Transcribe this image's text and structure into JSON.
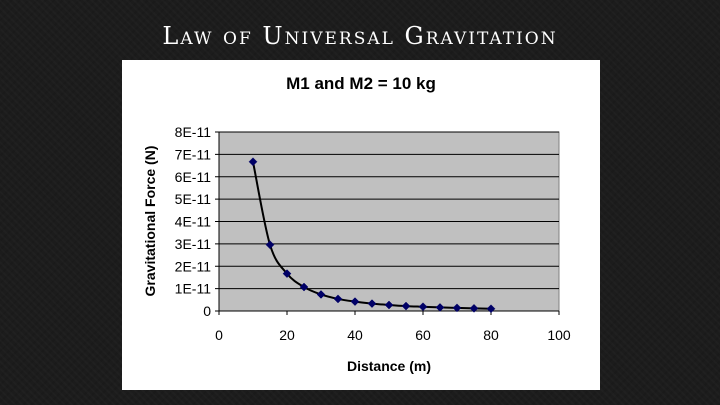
{
  "slide": {
    "title": "Law of Universal Gravitation"
  },
  "chart_data": {
    "type": "scatter",
    "title": "M1 and M2 = 10 kg",
    "xlabel": "Distance (m)",
    "ylabel": "Gravitational Force (N)",
    "xlim": [
      0,
      100
    ],
    "ylim": [
      0,
      8e-11
    ],
    "xticks": [
      0,
      20,
      40,
      60,
      80,
      100
    ],
    "xtick_labels": [
      "0",
      "20",
      "40",
      "60",
      "80",
      "100"
    ],
    "yticks": [
      0,
      1e-11,
      2e-11,
      3e-11,
      4e-11,
      5e-11,
      6e-11,
      7e-11,
      8e-11
    ],
    "ytick_labels": [
      "0",
      "1E-11",
      "2E-11",
      "3E-11",
      "4E-11",
      "5E-11",
      "6E-11",
      "7E-11",
      "8E-11"
    ],
    "grid": "horizontal",
    "line": "smooth",
    "marker": "diamond",
    "plot_background": "#c0c0c0",
    "series_color": "#000066",
    "line_color": "#000000",
    "series": [
      {
        "x": [
          10,
          15,
          20,
          25,
          30,
          35,
          40,
          45,
          50,
          55,
          60,
          65,
          70,
          75,
          80
        ],
        "y": [
          6.67e-11,
          2.96e-11,
          1.67e-11,
          1.07e-11,
          7.4e-12,
          5.4e-12,
          4.2e-12,
          3.3e-12,
          2.7e-12,
          2.2e-12,
          1.9e-12,
          1.6e-12,
          1.4e-12,
          1.2e-12,
          1e-12
        ]
      }
    ]
  }
}
